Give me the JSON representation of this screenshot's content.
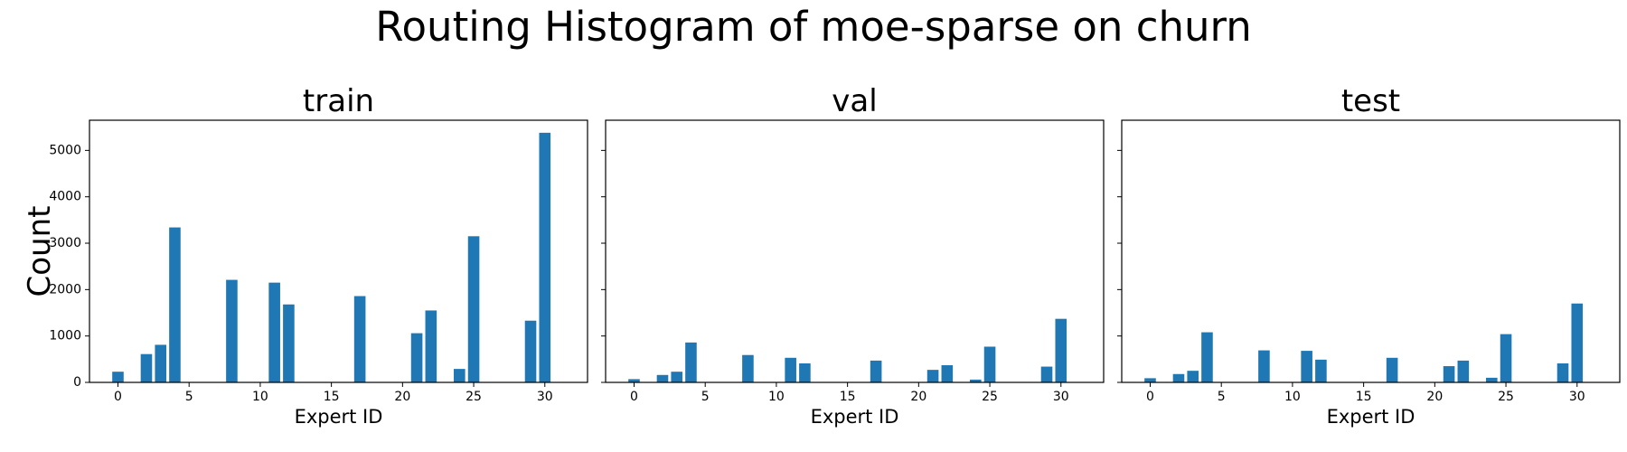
{
  "figure": {
    "suptitle": "Routing Histogram of moe-sparse on churn",
    "ylabel": "Count",
    "xlabel": "Expert ID"
  },
  "style": {
    "bar_color": "#1f77b4",
    "axis_color": "#000000"
  },
  "chart_data": [
    {
      "type": "bar",
      "title": "train",
      "xlabel": "Expert ID",
      "ylabel": "Count",
      "xlim": [
        -2,
        33
      ],
      "ylim": [
        0,
        5650
      ],
      "xticks": [
        0,
        5,
        10,
        15,
        20,
        25,
        30
      ],
      "yticks": [
        0,
        1000,
        2000,
        3000,
        4000,
        5000
      ],
      "show_ytick_labels": true,
      "grid": false,
      "categories": [
        0,
        2,
        3,
        4,
        8,
        11,
        12,
        17,
        21,
        22,
        24,
        25,
        29,
        30
      ],
      "values": [
        230,
        610,
        810,
        3340,
        2210,
        2150,
        1680,
        1860,
        1060,
        1550,
        290,
        3150,
        1330,
        5380
      ]
    },
    {
      "type": "bar",
      "title": "val",
      "xlabel": "Expert ID",
      "ylabel": "",
      "xlim": [
        -2,
        33
      ],
      "ylim": [
        0,
        5650
      ],
      "xticks": [
        0,
        5,
        10,
        15,
        20,
        25,
        30
      ],
      "yticks": [
        0,
        1000,
        2000,
        3000,
        4000,
        5000
      ],
      "show_ytick_labels": false,
      "grid": false,
      "categories": [
        0,
        2,
        3,
        4,
        8,
        11,
        12,
        17,
        21,
        22,
        24,
        25,
        29,
        30
      ],
      "values": [
        70,
        160,
        230,
        860,
        590,
        530,
        410,
        470,
        270,
        370,
        60,
        770,
        340,
        1370
      ]
    },
    {
      "type": "bar",
      "title": "test",
      "xlabel": "Expert ID",
      "ylabel": "",
      "xlim": [
        -2,
        33
      ],
      "ylim": [
        0,
        5650
      ],
      "xticks": [
        0,
        5,
        10,
        15,
        20,
        25,
        30
      ],
      "yticks": [
        0,
        1000,
        2000,
        3000,
        4000,
        5000
      ],
      "show_ytick_labels": false,
      "grid": false,
      "categories": [
        0,
        2,
        3,
        4,
        8,
        11,
        12,
        17,
        21,
        22,
        24,
        25,
        29,
        30
      ],
      "values": [
        90,
        180,
        250,
        1080,
        690,
        680,
        490,
        530,
        350,
        470,
        100,
        1040,
        410,
        1700
      ]
    }
  ]
}
